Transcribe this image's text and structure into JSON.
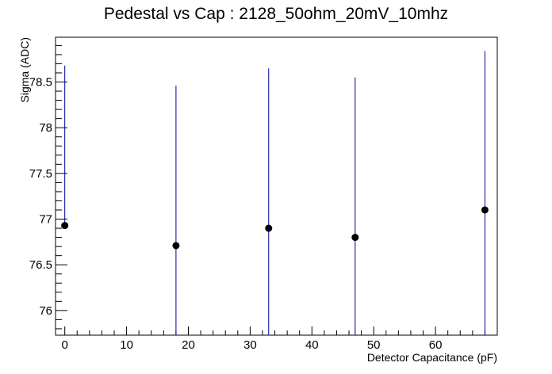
{
  "chart_data": {
    "type": "scatter",
    "title": "Pedestal vs Cap : 2128_50ohm_20mV_10mhz",
    "xlabel": "Detector Capacitance (pF)",
    "ylabel": "Sigma (ADC)",
    "xlim": [
      -1.5,
      70
    ],
    "ylim": [
      75.73,
      78.99
    ],
    "x_ticks": [
      0,
      10,
      20,
      30,
      40,
      50,
      60
    ],
    "y_ticks": [
      76,
      76.5,
      77,
      77.5,
      78,
      78.5
    ],
    "y_tick_labels": [
      "76",
      "76.5",
      "77",
      "77.5",
      "78",
      "78.5"
    ],
    "grid": false,
    "legend": "none",
    "series": [
      {
        "points": [
          {
            "x": 0,
            "y": 76.93,
            "err_low": 76.93,
            "err_high": 78.68
          },
          {
            "x": 18,
            "y": 76.71,
            "err_low": 75.73,
            "err_high": 78.46
          },
          {
            "x": 33,
            "y": 76.9,
            "err_low": 75.73,
            "err_high": 78.65
          },
          {
            "x": 47,
            "y": 76.8,
            "err_low": 75.73,
            "err_high": 78.55
          },
          {
            "x": 68,
            "y": 77.1,
            "err_low": 75.73,
            "err_high": 78.84
          }
        ]
      }
    ],
    "colors": {
      "marker": "#000000",
      "error_bar": "#000099",
      "axis": "#000000"
    }
  }
}
